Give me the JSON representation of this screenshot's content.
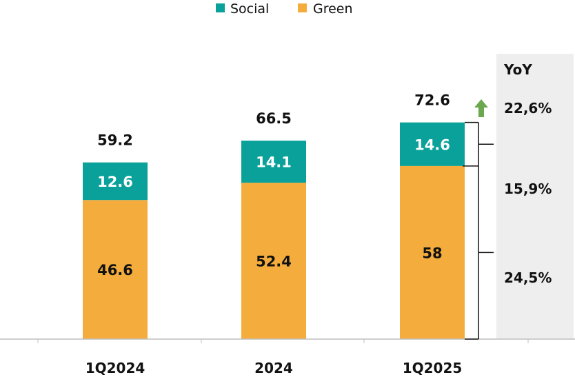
{
  "chart_data": {
    "type": "bar",
    "stacked": true,
    "categories": [
      "1Q2024",
      "2024",
      "1Q2025"
    ],
    "series": [
      {
        "name": "Green",
        "values": [
          46.6,
          52.4,
          58
        ],
        "value_labels": [
          "46.6",
          "52.4",
          "58"
        ],
        "color": "#F4AD3D"
      },
      {
        "name": "Social",
        "values": [
          12.6,
          14.1,
          14.6
        ],
        "value_labels": [
          "12.6",
          "14.1",
          "14.6"
        ],
        "color": "#0AA19A"
      }
    ],
    "totals": [
      59.2,
      66.5,
      72.6
    ],
    "total_labels": [
      "59.2",
      "66.5",
      "72.6"
    ],
    "legend": {
      "position": "top-center",
      "items": [
        "Social",
        "Green"
      ]
    },
    "grid": false,
    "ylim": [
      0,
      80
    ],
    "yoy": {
      "header": "YoY",
      "total": "22,6%",
      "total_trend": "up",
      "social": "15,9%",
      "green": "24,5%",
      "arrow_color": "#6AA84F",
      "panel_color": "#EEEEEE"
    }
  }
}
